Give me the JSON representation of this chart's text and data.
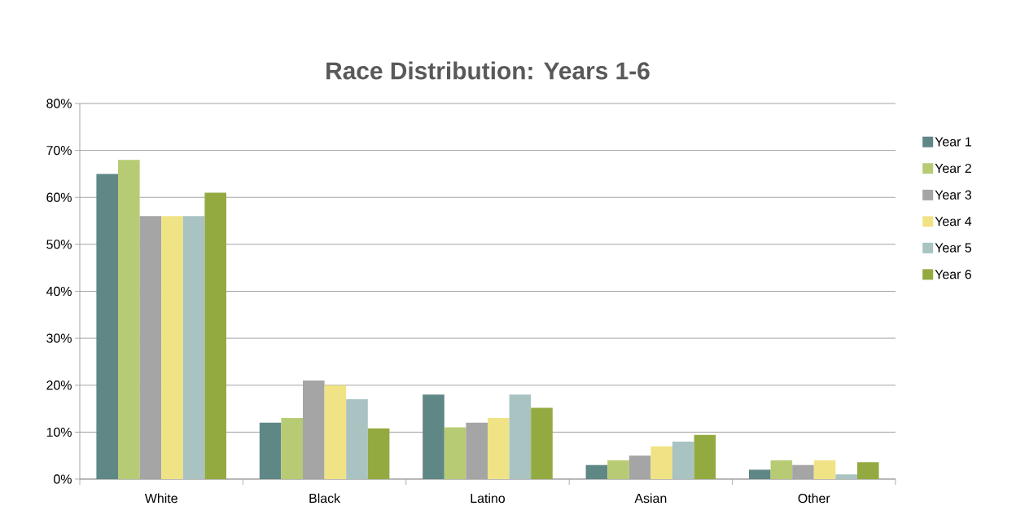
{
  "chart_data": {
    "type": "bar",
    "title": "Race Distribution: Years 1-6",
    "categories": [
      "White",
      "Black",
      "Latino",
      "Asian",
      "Other"
    ],
    "series": [
      {
        "name": "Year 1",
        "color": "#5e8785",
        "values": [
          65,
          12,
          18,
          3,
          2
        ]
      },
      {
        "name": "Year 2",
        "color": "#b7cb75",
        "values": [
          68,
          13,
          11,
          4,
          4
        ]
      },
      {
        "name": "Year 3",
        "color": "#a5a5a5",
        "values": [
          56,
          21,
          12,
          5,
          3
        ]
      },
      {
        "name": "Year 4",
        "color": "#f0e386",
        "values": [
          56,
          20,
          13,
          7,
          4
        ]
      },
      {
        "name": "Year 5",
        "color": "#a8c3c2",
        "values": [
          56,
          17,
          18,
          8,
          1
        ]
      },
      {
        "name": "Year 6",
        "color": "#93aa40",
        "values": [
          61,
          10.8,
          15.2,
          9.4,
          3.6
        ]
      }
    ],
    "ylim": [
      0,
      80
    ],
    "yticks": [
      {
        "value": 0,
        "label": "0%"
      },
      {
        "value": 10,
        "label": "10%"
      },
      {
        "value": 20,
        "label": "20%"
      },
      {
        "value": 30,
        "label": "30%"
      },
      {
        "value": 40,
        "label": "40%"
      },
      {
        "value": 50,
        "label": "50%"
      },
      {
        "value": 60,
        "label": "60%"
      },
      {
        "value": 70,
        "label": "70%"
      },
      {
        "value": 80,
        "label": "80%"
      }
    ],
    "grid": "y",
    "legend": "right"
  }
}
